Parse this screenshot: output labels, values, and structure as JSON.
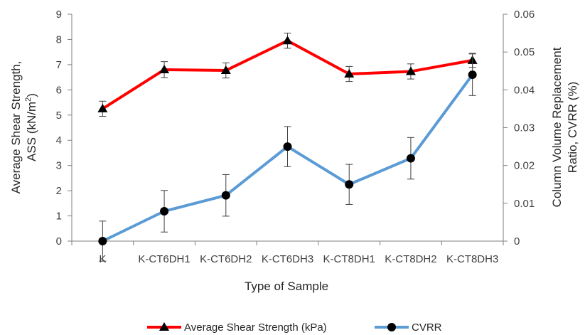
{
  "chart_data": {
    "type": "line",
    "categories": [
      "K",
      "K-CT6DH1",
      "K-CT6DH2",
      "K-CT6DH3",
      "K-CT8DH1",
      "K-CT8DH2",
      "K-CT8DH3"
    ],
    "xlabel": "Type of Sample",
    "ylabel_line1": "Average Shear Strength,",
    "ylabel_line2_prefix": "ASS (kN/m",
    "ylabel_line2_sup": "2",
    "ylabel_line2_suffix": ")",
    "y2label_line1": "Column Volume Replacement",
    "y2label_line2": "Ratio, CVRR (%)",
    "ylim": [
      0,
      9
    ],
    "y_ticks": [
      "0",
      "1",
      "2",
      "3",
      "4",
      "5",
      "6",
      "7",
      "8",
      "9"
    ],
    "y2lim": [
      0,
      0.06
    ],
    "y2_ticks": [
      "0",
      "0.01",
      "0.02",
      "0.03",
      "0.04",
      "0.05",
      "0.06"
    ],
    "legend_position": "bottom",
    "series": [
      {
        "name": "Average Shear Strength (kPa)",
        "axis": "left",
        "color": "#ff0000",
        "marker": "triangle",
        "values": [
          5.25,
          6.8,
          6.77,
          7.95,
          6.63,
          6.73,
          7.17
        ],
        "error": [
          0.3,
          0.32,
          0.3,
          0.3,
          0.3,
          0.3,
          0.28
        ]
      },
      {
        "name": "CVRR",
        "axis": "right",
        "color": "#5b9bd5",
        "marker": "circle",
        "values": [
          0,
          0.0079,
          0.0121,
          0.025,
          0.015,
          0.0219,
          0.044
        ],
        "error": [
          0.0053,
          0.0055,
          0.0055,
          0.0053,
          0.0053,
          0.0055,
          0.0055
        ]
      }
    ]
  }
}
